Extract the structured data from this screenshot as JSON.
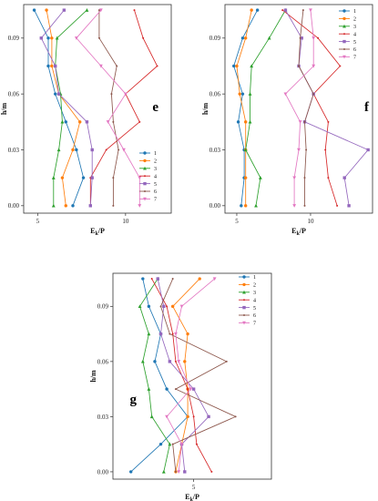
{
  "figure": {
    "series_colors": [
      "#1f77b4",
      "#ff7f0e",
      "#2ca02c",
      "#d62728",
      "#9467bd",
      "#8c564b",
      "#e377c2"
    ]
  },
  "chart_data": [
    {
      "type": "line",
      "panel": "e",
      "xlabel": "E_k/P_a",
      "ylabel": "h/m",
      "xlim": [
        4.2,
        12.6
      ],
      "ylim": [
        -0.004,
        0.108
      ],
      "xticks": [
        5,
        10
      ],
      "yticks": [
        0.0,
        0.03,
        0.06,
        0.09
      ],
      "ytick_labels": [
        "0.00",
        "0.03",
        "0.06",
        "0.09"
      ],
      "xtick_labels": [
        "5",
        "10"
      ],
      "legend": "lower-right",
      "series": [
        {
          "name": "1",
          "points": [
            [
              4.8,
              0.105
            ],
            [
              5.6,
              0.09
            ],
            [
              5.6,
              0.075
            ],
            [
              6.0,
              0.06
            ],
            [
              6.6,
              0.045
            ],
            [
              7.2,
              0.03
            ],
            [
              7.6,
              0.015
            ],
            [
              7.0,
              0.0
            ]
          ]
        },
        {
          "name": "2",
          "points": [
            [
              5.5,
              0.105
            ],
            [
              5.8,
              0.09
            ],
            [
              5.8,
              0.075
            ],
            [
              6.2,
              0.06
            ],
            [
              7.4,
              0.045
            ],
            [
              7.0,
              0.03
            ],
            [
              6.4,
              0.015
            ],
            [
              6.6,
              0.0
            ]
          ]
        },
        {
          "name": "3",
          "points": [
            [
              7.8,
              0.105
            ],
            [
              6.1,
              0.09
            ],
            [
              6.0,
              0.075
            ],
            [
              6.3,
              0.06
            ],
            [
              6.4,
              0.045
            ],
            [
              6.2,
              0.03
            ],
            [
              5.9,
              0.015
            ],
            [
              5.9,
              0.0
            ]
          ]
        },
        {
          "name": "4",
          "points": [
            [
              10.5,
              0.105
            ],
            [
              11.0,
              0.09
            ],
            [
              11.8,
              0.075
            ],
            [
              10.0,
              0.06
            ],
            [
              10.8,
              0.045
            ],
            [
              8.9,
              0.03
            ],
            [
              8.0,
              0.015
            ],
            [
              8.0,
              0.0
            ]
          ]
        },
        {
          "name": "5",
          "points": [
            [
              6.5,
              0.105
            ],
            [
              5.2,
              0.09
            ],
            [
              6.0,
              0.075
            ],
            [
              6.2,
              0.06
            ],
            [
              7.8,
              0.045
            ],
            [
              8.1,
              0.03
            ],
            [
              8.1,
              0.015
            ],
            [
              8.0,
              0.0
            ]
          ]
        },
        {
          "name": "6",
          "points": [
            [
              8.5,
              0.105
            ],
            [
              8.5,
              0.09
            ],
            [
              9.5,
              0.075
            ],
            [
              9.2,
              0.06
            ],
            [
              9.3,
              0.045
            ],
            [
              9.6,
              0.03
            ],
            [
              9.3,
              0.015
            ],
            [
              9.3,
              0.0
            ]
          ]
        },
        {
          "name": "7",
          "points": [
            [
              8.6,
              0.105
            ],
            [
              7.2,
              0.09
            ],
            [
              8.6,
              0.075
            ],
            [
              10.0,
              0.06
            ],
            [
              9.0,
              0.045
            ],
            [
              9.9,
              0.03
            ],
            [
              10.8,
              0.015
            ],
            [
              10.8,
              0.0
            ]
          ]
        }
      ]
    },
    {
      "type": "line",
      "panel": "f",
      "xlabel": "E_k/P_a",
      "ylabel": "h/m",
      "xlim": [
        4.2,
        14.2
      ],
      "ylim": [
        -0.004,
        0.108
      ],
      "xticks": [
        5,
        10
      ],
      "yticks": [
        0.0,
        0.03,
        0.06,
        0.09
      ],
      "ytick_labels": [
        "0.00",
        "0.03",
        "0.06",
        "0.09"
      ],
      "xtick_labels": [
        "5",
        "10"
      ],
      "legend": "top-right",
      "series": [
        {
          "name": "1",
          "points": [
            [
              6.4,
              0.105
            ],
            [
              5.4,
              0.09
            ],
            [
              4.8,
              0.075
            ],
            [
              5.4,
              0.06
            ],
            [
              5.1,
              0.045
            ],
            [
              5.5,
              0.03
            ],
            [
              5.5,
              0.015
            ],
            [
              5.3,
              0.0
            ]
          ]
        },
        {
          "name": "2",
          "points": [
            [
              6.0,
              0.105
            ],
            [
              5.6,
              0.09
            ],
            [
              5.0,
              0.075
            ],
            [
              5.2,
              0.06
            ],
            [
              5.6,
              0.045
            ],
            [
              5.6,
              0.03
            ],
            [
              5.6,
              0.015
            ],
            [
              5.6,
              0.0
            ]
          ]
        },
        {
          "name": "3",
          "points": [
            [
              8.3,
              0.105
            ],
            [
              7.2,
              0.09
            ],
            [
              6.0,
              0.075
            ],
            [
              5.9,
              0.06
            ],
            [
              5.9,
              0.045
            ],
            [
              5.6,
              0.03
            ],
            [
              6.6,
              0.015
            ],
            [
              6.3,
              0.0
            ]
          ]
        },
        {
          "name": "4",
          "points": [
            [
              8.1,
              0.105
            ],
            [
              10.5,
              0.09
            ],
            [
              12.0,
              0.075
            ],
            [
              10.2,
              0.06
            ],
            [
              11.2,
              0.045
            ],
            [
              11.0,
              0.03
            ],
            [
              11.2,
              0.015
            ],
            [
              11.8,
              0.0
            ]
          ]
        },
        {
          "name": "5",
          "points": [
            [
              8.3,
              0.105
            ],
            [
              9.4,
              0.09
            ],
            [
              9.2,
              0.075
            ],
            [
              10.2,
              0.06
            ],
            [
              9.6,
              0.045
            ],
            [
              13.9,
              0.03
            ],
            [
              12.3,
              0.015
            ],
            [
              12.6,
              0.0
            ]
          ]
        },
        {
          "name": "6",
          "points": [
            [
              9.5,
              0.105
            ],
            [
              9.3,
              0.09
            ],
            [
              9.2,
              0.075
            ],
            [
              10.2,
              0.06
            ],
            [
              9.6,
              0.045
            ],
            [
              9.7,
              0.03
            ],
            [
              9.6,
              0.015
            ],
            [
              9.6,
              0.0
            ]
          ]
        },
        {
          "name": "7",
          "points": [
            [
              10.0,
              0.105
            ],
            [
              10.2,
              0.09
            ],
            [
              10.2,
              0.075
            ],
            [
              8.3,
              0.06
            ],
            [
              9.3,
              0.045
            ],
            [
              9.2,
              0.03
            ],
            [
              8.9,
              0.015
            ],
            [
              8.9,
              0.0
            ]
          ]
        }
      ]
    },
    {
      "type": "line",
      "panel": "g",
      "xlabel": "E_k/P_a",
      "ylabel": "h/m",
      "xlim": [
        2.3,
        7.6
      ],
      "ylim": [
        -0.004,
        0.108
      ],
      "xticks": [
        5
      ],
      "yticks": [
        0.0,
        0.03,
        0.06,
        0.09
      ],
      "ytick_labels": [
        "0.00",
        "0.03",
        "0.06",
        "0.09"
      ],
      "xtick_labels": [
        "5"
      ],
      "legend": "top-right",
      "series": [
        {
          "name": "1",
          "points": [
            [
              3.3,
              0.105
            ],
            [
              3.5,
              0.09
            ],
            [
              3.9,
              0.075
            ],
            [
              3.7,
              0.06
            ],
            [
              4.1,
              0.045
            ],
            [
              4.8,
              0.03
            ],
            [
              3.9,
              0.015
            ],
            [
              2.9,
              0.0
            ]
          ]
        },
        {
          "name": "2",
          "points": [
            [
              5.2,
              0.105
            ],
            [
              4.3,
              0.09
            ],
            [
              4.8,
              0.075
            ],
            [
              4.7,
              0.06
            ],
            [
              4.8,
              0.045
            ],
            [
              4.8,
              0.03
            ],
            [
              4.6,
              0.015
            ],
            [
              4.4,
              0.0
            ]
          ]
        },
        {
          "name": "3",
          "points": [
            [
              3.8,
              0.105
            ],
            [
              3.2,
              0.09
            ],
            [
              3.5,
              0.075
            ],
            [
              3.3,
              0.06
            ],
            [
              3.5,
              0.045
            ],
            [
              3.6,
              0.03
            ],
            [
              4.2,
              0.015
            ],
            [
              4.0,
              0.0
            ]
          ]
        },
        {
          "name": "4",
          "points": [
            [
              3.6,
              0.105
            ],
            [
              4.1,
              0.09
            ],
            [
              4.3,
              0.075
            ],
            [
              4.4,
              0.06
            ],
            [
              4.8,
              0.045
            ],
            [
              5.0,
              0.03
            ],
            [
              5.1,
              0.015
            ],
            [
              5.6,
              0.0
            ]
          ]
        },
        {
          "name": "5",
          "points": [
            [
              3.8,
              0.105
            ],
            [
              4.0,
              0.09
            ],
            [
              3.9,
              0.075
            ],
            [
              4.2,
              0.06
            ],
            [
              5.0,
              0.045
            ],
            [
              5.5,
              0.03
            ],
            [
              4.6,
              0.015
            ],
            [
              4.7,
              0.0
            ]
          ]
        },
        {
          "name": "6",
          "points": [
            [
              4.3,
              0.105
            ],
            [
              3.9,
              0.09
            ],
            [
              4.2,
              0.075
            ],
            [
              6.1,
              0.06
            ],
            [
              4.4,
              0.045
            ],
            [
              6.4,
              0.03
            ],
            [
              4.3,
              0.015
            ],
            [
              4.4,
              0.0
            ]
          ]
        },
        {
          "name": "7",
          "points": [
            [
              5.7,
              0.105
            ],
            [
              4.6,
              0.09
            ],
            [
              4.4,
              0.075
            ],
            [
              4.5,
              0.06
            ],
            [
              4.9,
              0.045
            ],
            [
              4.1,
              0.03
            ],
            [
              4.6,
              0.015
            ],
            [
              4.5,
              0.0
            ]
          ]
        }
      ]
    }
  ]
}
